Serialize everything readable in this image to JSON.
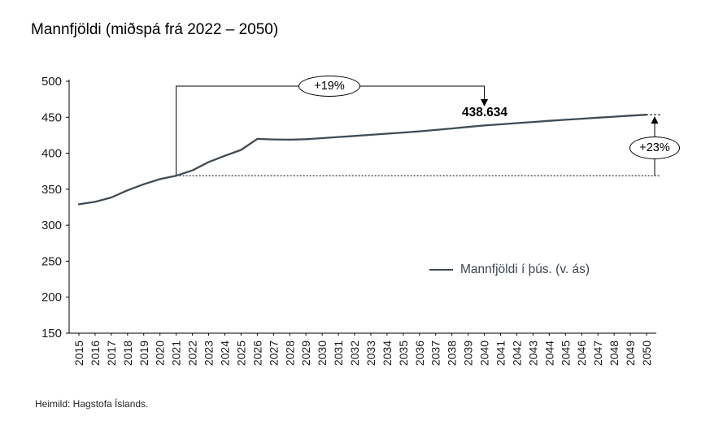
{
  "page": {
    "title": "Mannfjöldi (miðspá frá 2022 – 2050)",
    "source": "Heimild: Hagstofa Íslands."
  },
  "legend": {
    "label": "Mannfjöldi í þús. (v. ás)"
  },
  "annotations": {
    "pct_2040": "+19%",
    "value_2040": "438.634",
    "pct_2050": "+23%"
  },
  "chart_data": {
    "type": "line",
    "title": "Mannfjöldi (miðspá frá 2022 – 2050)",
    "xlabel": "",
    "ylabel": "",
    "x": [
      2015,
      2016,
      2017,
      2018,
      2019,
      2020,
      2021,
      2022,
      2023,
      2024,
      2025,
      2026,
      2027,
      2028,
      2029,
      2030,
      2031,
      2032,
      2033,
      2034,
      2035,
      2036,
      2037,
      2038,
      2039,
      2040,
      2041,
      2042,
      2043,
      2044,
      2045,
      2046,
      2047,
      2048,
      2049,
      2050
    ],
    "series": [
      {
        "name": "Mannfjöldi í þús. (v. ás)",
        "values": [
          329.1,
          332.5,
          338.5,
          348.5,
          357.0,
          364.1,
          368.8,
          376.2,
          387.8,
          396.5,
          404.6,
          420.0,
          419.2,
          418.8,
          419.5,
          421.0,
          422.5,
          424.0,
          425.6,
          427.2,
          428.8,
          430.4,
          432.4,
          434.4,
          436.5,
          438.634,
          440.2,
          441.8,
          443.4,
          445.0,
          446.5,
          448.0,
          449.4,
          450.8,
          452.2,
          453.5
        ]
      }
    ],
    "ylim": [
      150,
      500
    ],
    "yticks": [
      150,
      200,
      250,
      300,
      350,
      400,
      450,
      500
    ],
    "grid": false,
    "legend_position": "center-right",
    "line_color": "#3f4c55",
    "baseline_value": 368.8,
    "annotations": [
      {
        "type": "callout-arrow",
        "text": "+19%",
        "from_year": 2021,
        "to_year": 2040
      },
      {
        "type": "data-label",
        "text": "438.634",
        "year": 2040,
        "value": 438.634
      },
      {
        "type": "callout-arrow",
        "text": "+23%",
        "year": 2050,
        "from_value": 368.8,
        "to_value": 453.5
      }
    ],
    "source": "Heimild: Hagstofa Íslands."
  }
}
